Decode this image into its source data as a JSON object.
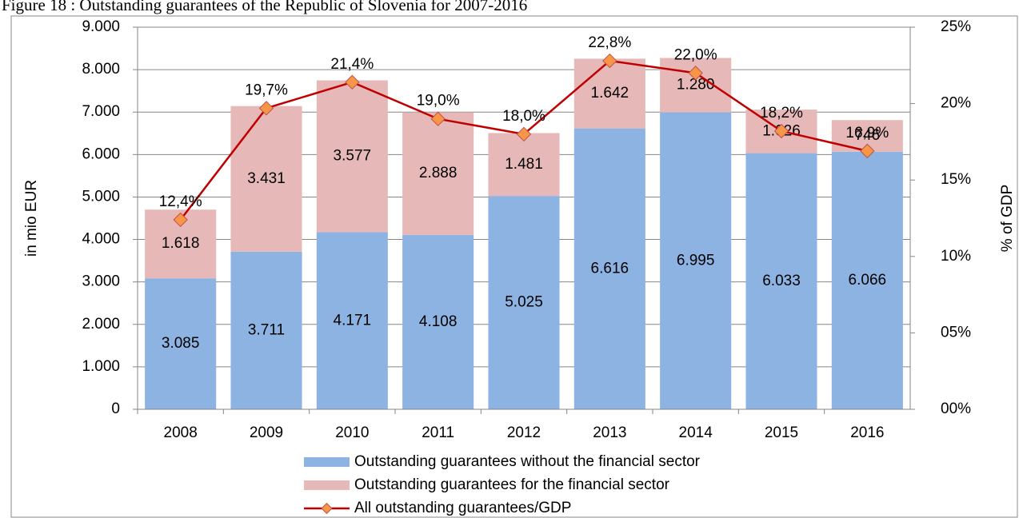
{
  "chart_data": {
    "type": "bar",
    "title": "Figure 18 : Outstanding guarantees of the Republic of Slovenia for 2007-2016",
    "y_label": "in mio EUR",
    "y2_label": "% of GDP",
    "categories": [
      "2008",
      "2009",
      "2010",
      "2011",
      "2012",
      "2013",
      "2014",
      "2015",
      "2016"
    ],
    "series": [
      {
        "name": "Outstanding guarantees without the financial sector",
        "color": "#8db3e2",
        "stack": true,
        "values": [
          3085,
          3711,
          4171,
          4108,
          5025,
          6616,
          6995,
          6033,
          6066
        ],
        "value_labels": [
          "3.085",
          "3.711",
          "4.171",
          "4.108",
          "5.025",
          "6.616",
          "6.995",
          "6.033",
          "6.066"
        ]
      },
      {
        "name": "Outstanding guarantees for the financial sector",
        "color": "#e6b9b8",
        "stack": true,
        "values": [
          1618,
          3431,
          3577,
          2888,
          1481,
          1642,
          1280,
          1026,
          746
        ],
        "value_labels": [
          "1.618",
          "3.431",
          "3.577",
          "2.888",
          "1.481",
          "1.642",
          "1.280",
          "1.026",
          "746"
        ]
      },
      {
        "name": "All outstanding guarantees/GDP",
        "color": "#c00000",
        "marker_color": "#f79646",
        "type": "line",
        "axis": "y2",
        "values": [
          12.4,
          19.7,
          21.4,
          19.0,
          18.0,
          22.8,
          22.0,
          18.2,
          16.9
        ],
        "value_labels": [
          "12,4%",
          "19,7%",
          "21,4%",
          "19,0%",
          "18,0%",
          "22,8%",
          "22,0%",
          "18,2%",
          "16,9%"
        ]
      }
    ],
    "ylim": [
      0,
      9000
    ],
    "yticks": [
      0,
      {
        "value": 1000,
        "label": "1.000"
      },
      {
        "value": 2000,
        "label": "2.000"
      },
      {
        "value": 3000,
        "label": "3.000"
      },
      {
        "value": 4000,
        "label": "4.000"
      },
      {
        "value": 5000,
        "label": "5.000"
      },
      {
        "value": 6000,
        "label": "6.000"
      },
      {
        "value": 7000,
        "label": "7.000"
      },
      {
        "value": 8000,
        "label": "8.000"
      },
      {
        "value": 9000,
        "label": "9.000"
      }
    ],
    "y2lim": [
      0,
      25
    ],
    "y2ticks": [
      {
        "value": 0,
        "label": "00%"
      },
      {
        "value": 5,
        "label": "05%"
      },
      {
        "value": 10,
        "label": "10%"
      },
      {
        "value": 15,
        "label": "15%"
      },
      {
        "value": 20,
        "label": "20%"
      },
      {
        "value": 25,
        "label": "25%"
      }
    ],
    "grid": true,
    "legend": "bottom"
  }
}
